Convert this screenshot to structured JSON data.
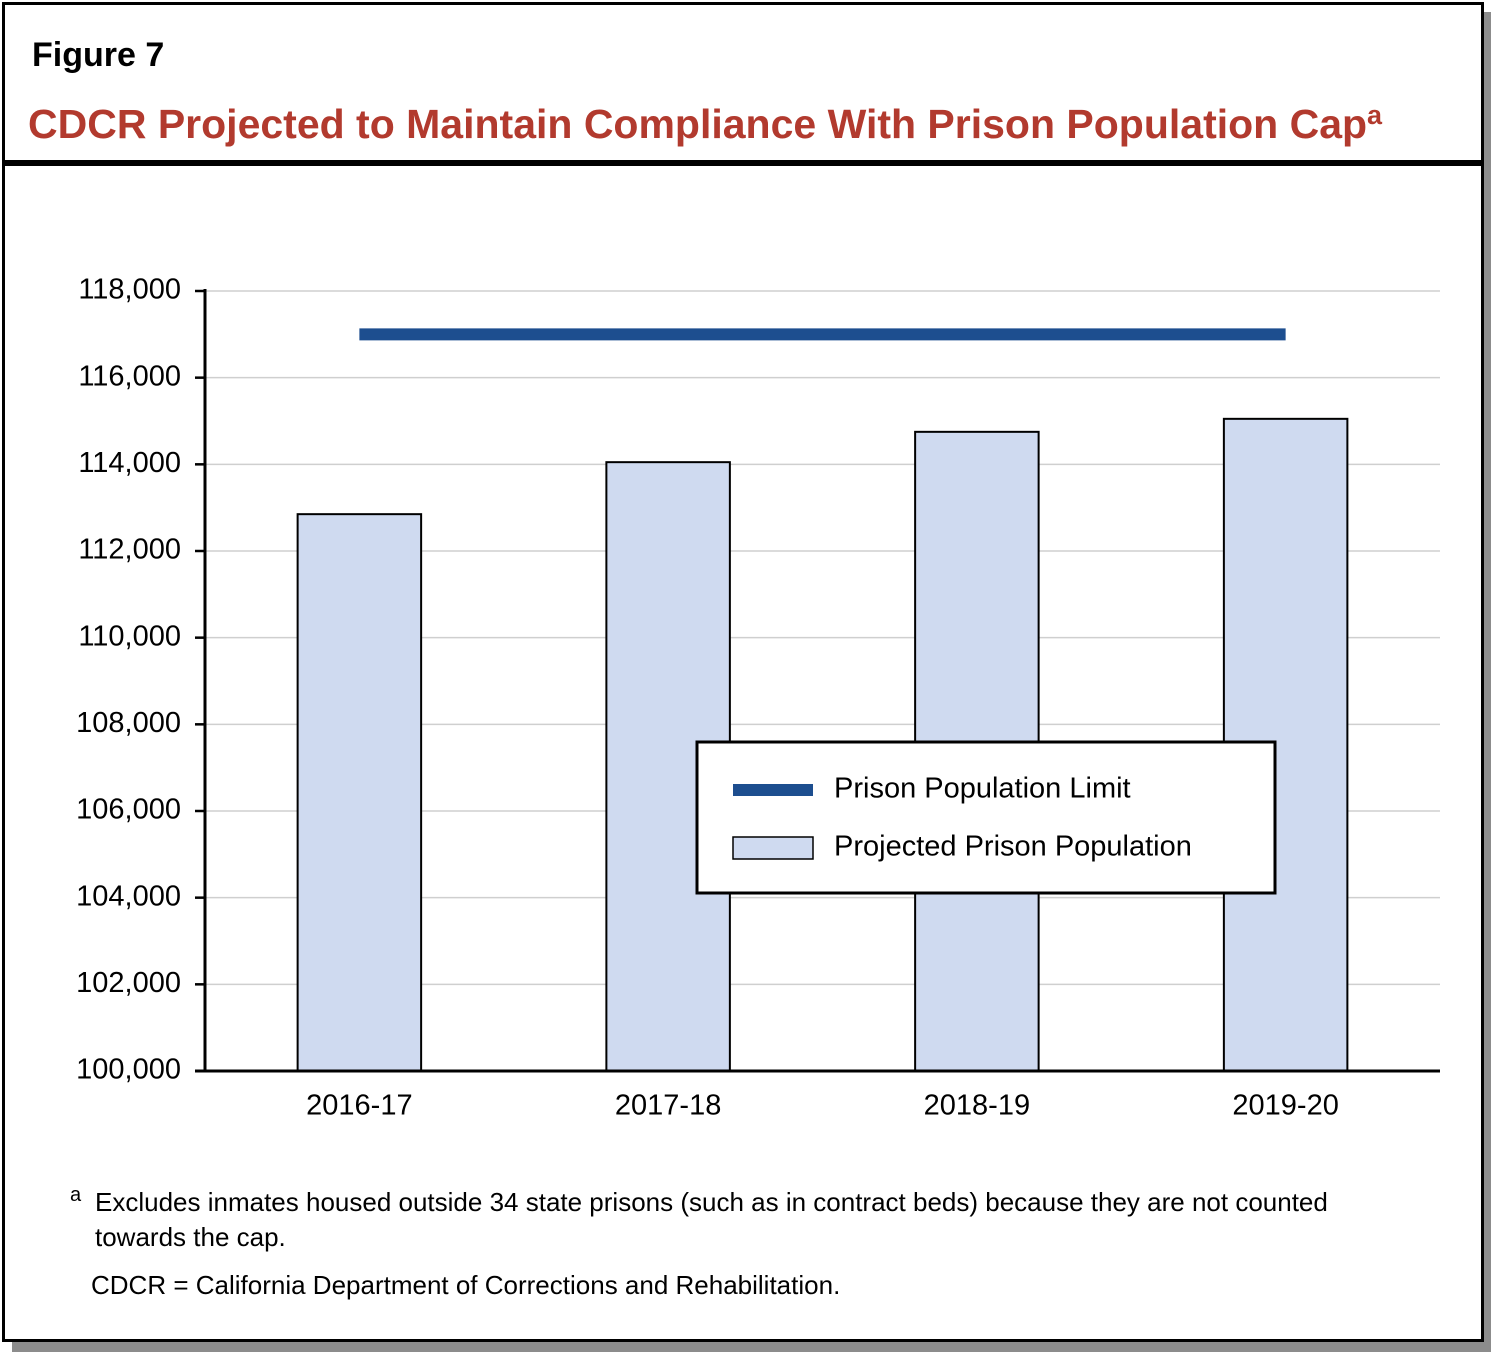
{
  "chart_data": {
    "type": "bar",
    "figure_label": "Figure 7",
    "title": "CDCR Projected to Maintain Compliance With Prison Population Cap",
    "title_note_marker": "a",
    "categories": [
      "2016-17",
      "2017-18",
      "2018-19",
      "2019-20"
    ],
    "series": [
      {
        "name": "Prison Population Limit",
        "type": "line",
        "color": "#1d4e8f",
        "values": [
          117000,
          117000,
          117000,
          117000
        ]
      },
      {
        "name": "Projected Prison Population",
        "type": "bar",
        "color": "#cfdaf0",
        "values": [
          112850,
          114050,
          114750,
          115050
        ]
      }
    ],
    "ylim": [
      100000,
      118000
    ],
    "yticks": [
      {
        "value": 100000,
        "label": "100,000"
      },
      {
        "value": 102000,
        "label": "102,000"
      },
      {
        "value": 104000,
        "label": "104,000"
      },
      {
        "value": 106000,
        "label": "106,000"
      },
      {
        "value": 108000,
        "label": "108,000"
      },
      {
        "value": 110000,
        "label": "110,000"
      },
      {
        "value": 112000,
        "label": "112,000"
      },
      {
        "value": 114000,
        "label": "114,000"
      },
      {
        "value": 116000,
        "label": "116,000"
      },
      {
        "value": 118000,
        "label": "118,000"
      }
    ],
    "grid": true,
    "legend": "center-right",
    "footnotes": [
      {
        "marker": "a",
        "text": "Excludes inmates housed outside 34 state prisons (such as in contract beds) because they are not counted towards the cap."
      },
      {
        "text": "CDCR = California Department of Corrections and Rehabilitation."
      }
    ]
  }
}
